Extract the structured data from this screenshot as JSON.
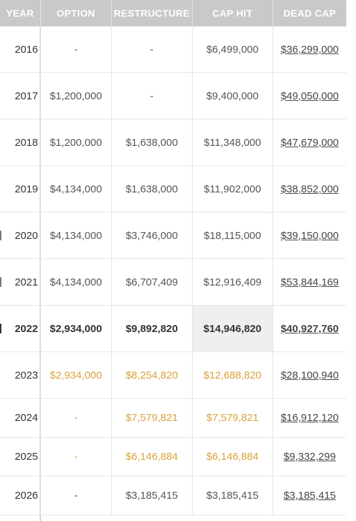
{
  "headers": {
    "year": "YEAR",
    "option": "OPTION",
    "restructure": "RESTRUCTURE",
    "cap_hit": "CAP HIT",
    "dead_cap": "DEAD CAP"
  },
  "rows": [
    {
      "year": "2016",
      "option": "-",
      "restructure": "-",
      "cap_hit": "$6,499,000",
      "dead_cap": "$36,299,000"
    },
    {
      "year": "2017",
      "option": "$1,200,000",
      "restructure": "-",
      "cap_hit": "$9,400,000",
      "dead_cap": "$49,050,000"
    },
    {
      "year": "2018",
      "option": "$1,200,000",
      "restructure": "$1,638,000",
      "cap_hit": "$11,348,000",
      "dead_cap": "$47,679,000"
    },
    {
      "year": "2019",
      "option": "$4,134,000",
      "restructure": "$1,638,000",
      "cap_hit": "$11,902,000",
      "dead_cap": "$38,852,000"
    },
    {
      "year": "2020",
      "option": "$4,134,000",
      "restructure": "$3,746,000",
      "cap_hit": "$18,115,000",
      "dead_cap": "$39,150,000"
    },
    {
      "year": "2021",
      "option": "$4,134,000",
      "restructure": "$6,707,409",
      "cap_hit": "$12,916,409",
      "dead_cap": "$53,844,169"
    },
    {
      "year": "2022",
      "option": "$2,934,000",
      "restructure": "$9,892,820",
      "cap_hit": "$14,946,820",
      "dead_cap": "$40,927,760"
    },
    {
      "year": "2023",
      "option": "$2,934,000",
      "restructure": "$8,254,820",
      "cap_hit": "$12,688,820",
      "dead_cap": "$28,100,940"
    },
    {
      "year": "2024",
      "option": "-",
      "restructure": "$7,579,821",
      "cap_hit": "$7,579,821",
      "dead_cap": "$16,912,120"
    },
    {
      "year": "2025",
      "option": "-",
      "restructure": "$6,146,884",
      "cap_hit": "$6,146,884",
      "dead_cap": "$9,332,299"
    },
    {
      "year": "2026",
      "option": "-",
      "restructure": "$3,185,415",
      "cap_hit": "$3,185,415",
      "dead_cap": "$3,185,415"
    }
  ],
  "colors": {
    "header_bg": "#c9c9c9",
    "future_value": "#d9a23a",
    "current_row_highlight": "#efefef"
  }
}
